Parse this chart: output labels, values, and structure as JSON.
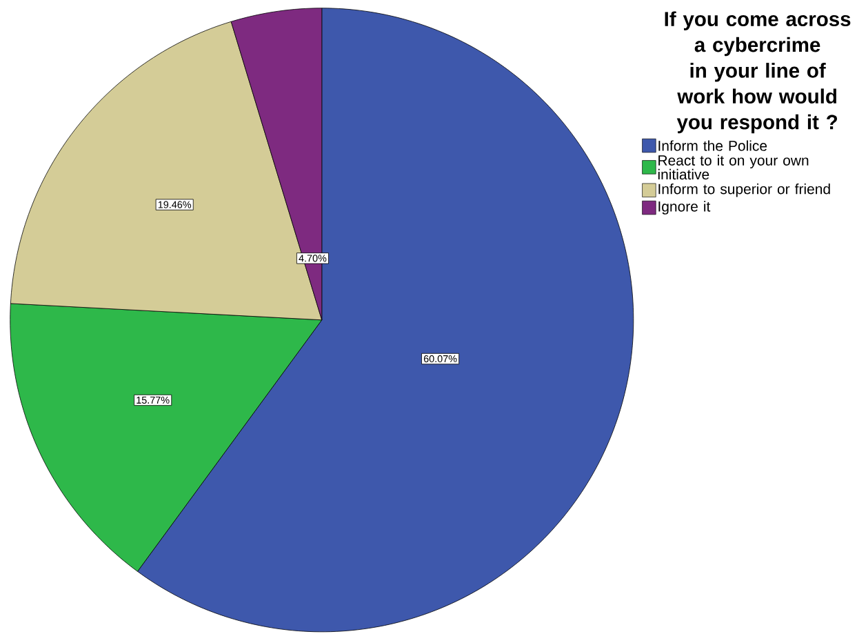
{
  "chart_data": {
    "type": "pie",
    "legend_title": "If you come across a cybercrime in your line of work how would you respond it ?",
    "categories": [
      "Inform the Police",
      "React to it on your own initiative",
      "Inform to superior or friend",
      "Ignore it"
    ],
    "values": [
      60.07,
      15.77,
      19.46,
      4.7
    ],
    "value_labels": [
      "60.07%",
      "15.77%",
      "19.46%",
      "4.70%"
    ],
    "colors": [
      "#3e58ac",
      "#2eb84a",
      "#d4cc97",
      "#7e2a80"
    ],
    "legend": "right"
  }
}
